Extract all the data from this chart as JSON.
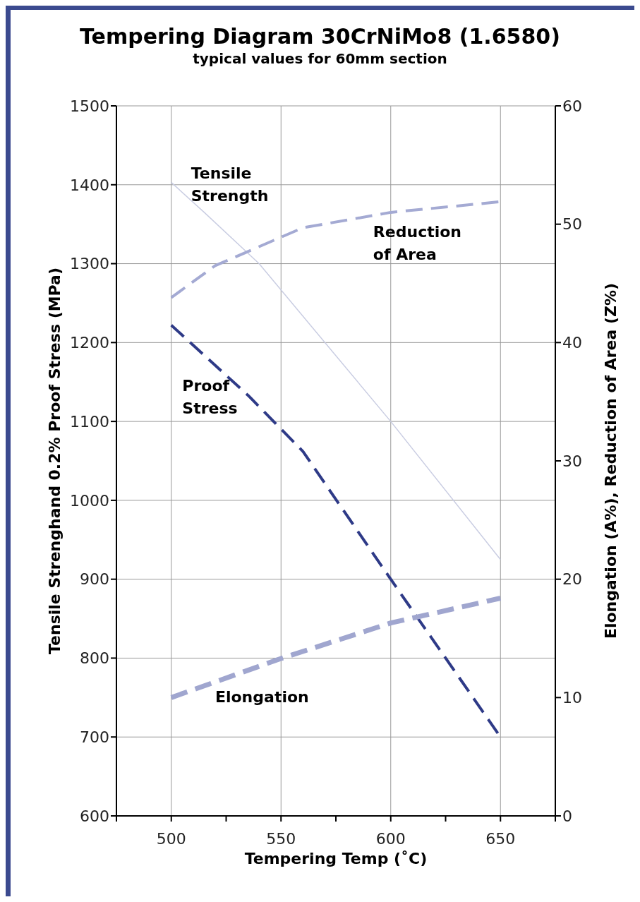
{
  "chart_data": {
    "type": "line",
    "title": "Tempering Diagram 30CrNiMo8 (1.6580)",
    "subtitle": "typical values for 60mm section",
    "xlabel": "Tempering Temp (˚C)",
    "ylabel": "Tensile Strenghand 0.2% Proof Stress (MPa)",
    "y2label": "Elongation (A%), Reduction of Area (Z%)",
    "series": [
      {
        "name": "Tensile Strength",
        "color": "#c9cde2",
        "x": [
          500,
          515,
          540,
          600,
          650
        ],
        "values": [
          1403,
          1365,
          1300,
          1100,
          925
        ],
        "line_style": "solid"
      },
      {
        "name": "Proof Stress",
        "color": "#2e3a87",
        "x": [
          500,
          535,
          560,
          600,
          650
        ],
        "values": [
          1222,
          1133,
          1062,
          900,
          700
        ],
        "line_style": "dashed"
      },
      {
        "name": "Reduction of Area",
        "color": "#a4aad3",
        "axis": "y2",
        "x": [
          500,
          520,
          540,
          560,
          600,
          650
        ],
        "values": [
          43.8,
          46.5,
          48.1,
          49.7,
          51.0,
          51.9
        ],
        "line_style": "dashed"
      },
      {
        "name": "Elongation",
        "color": "#a0a6cf",
        "axis": "y2",
        "x": [
          500,
          550,
          600,
          650
        ],
        "values": [
          10,
          13.3,
          16.3,
          18.4
        ],
        "line_style": "dashed"
      }
    ],
    "xlim": [
      475,
      675
    ],
    "xticks": [
      {
        "value": 475,
        "label": null
      },
      500,
      {
        "value": 525,
        "label": null
      },
      550,
      {
        "value": 575,
        "label": null
      },
      600,
      {
        "value": 625,
        "label": null
      },
      650,
      {
        "value": 675,
        "label": null
      }
    ],
    "ylim": [
      600,
      1500
    ],
    "yticks": [
      600,
      700,
      800,
      900,
      1000,
      1100,
      1200,
      1300,
      1400,
      1500
    ],
    "y2lim": [
      0,
      60
    ],
    "y2ticks": [
      0,
      10,
      20,
      30,
      40,
      50,
      60
    ],
    "grid": true,
    "marker": "none"
  }
}
